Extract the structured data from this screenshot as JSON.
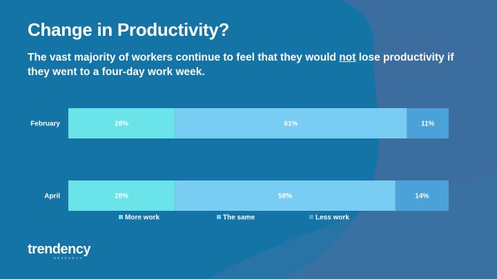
{
  "slide": {
    "title": "Change in Productivity?",
    "subtitle_before": "The vast majority of workers continue to feel that they would ",
    "subtitle_emphasis": "not",
    "subtitle_after": " lose productivity if they went to a four-day work week."
  },
  "logo": {
    "name": "trendency",
    "subtitle": "RESEARCH"
  },
  "colors": {
    "background": "#1474a6",
    "wave_dark": "#3b6e9e",
    "wave_light": "#3975a8",
    "more_work": "#6ae4e8",
    "the_same": "#7acdf2",
    "less_work": "#4aa2d8"
  },
  "chart_data": {
    "type": "bar",
    "orientation": "horizontal",
    "stacked": true,
    "title": "",
    "xlabel": "",
    "ylabel": "",
    "xlim": [
      0,
      100
    ],
    "categories": [
      "February",
      "April"
    ],
    "series": [
      {
        "name": "More work",
        "values": [
          28,
          28
        ],
        "labels": [
          "28%",
          "28%"
        ]
      },
      {
        "name": "The same",
        "values": [
          61,
          58
        ],
        "labels": [
          "61%",
          "58%"
        ]
      },
      {
        "name": "Less work",
        "values": [
          11,
          14
        ],
        "labels": [
          "11%",
          "14%"
        ]
      }
    ],
    "legend": "bottom",
    "grid": false
  }
}
